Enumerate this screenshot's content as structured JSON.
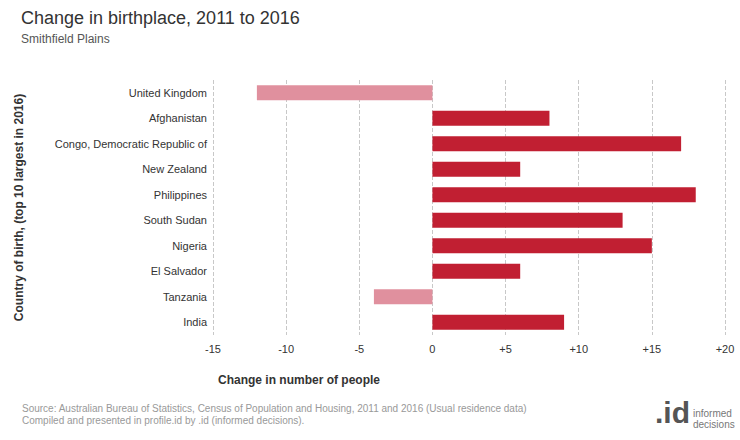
{
  "chart_data": {
    "type": "bar",
    "orientation": "horizontal",
    "title": "Change in birthplace, 2011 to 2016",
    "subtitle": "Smithfield Plains",
    "x_label": "Change in number of people",
    "y_label": "Country of birth, (top 10 largest in 2016)",
    "categories": [
      "United Kingdom",
      "Afghanistan",
      "Congo, Democratic Republic of",
      "New Zealand",
      "Philippines",
      "South Sudan",
      "Nigeria",
      "El Salvador",
      "Tanzania",
      "India"
    ],
    "values": [
      -12,
      8,
      17,
      6,
      18,
      13,
      15,
      6,
      -4,
      9
    ],
    "colors": [
      "#e0909e",
      "#c11f32",
      "#c11f32",
      "#c11f32",
      "#c11f32",
      "#c11f32",
      "#c11f32",
      "#c11f32",
      "#e0909e",
      "#c11f32"
    ],
    "xlim": [
      -15,
      20
    ],
    "xticks": [
      -15,
      -10,
      -5,
      0,
      {
        "value": 5,
        "label": "+5"
      },
      {
        "value": 10,
        "label": "+10"
      },
      {
        "value": 15,
        "label": "+15"
      },
      {
        "value": 20,
        "label": "+20"
      }
    ],
    "grid": true,
    "source": [
      "Source: Australian Bureau of Statistics, Census of Population and Housing, 2011 and 2016 (Usual residence data)",
      "Compiled and presented in profile.id by .id (informed decisions)."
    ],
    "logo": {
      "mark": ".id",
      "text": [
        "informed",
        "decisions"
      ]
    }
  }
}
